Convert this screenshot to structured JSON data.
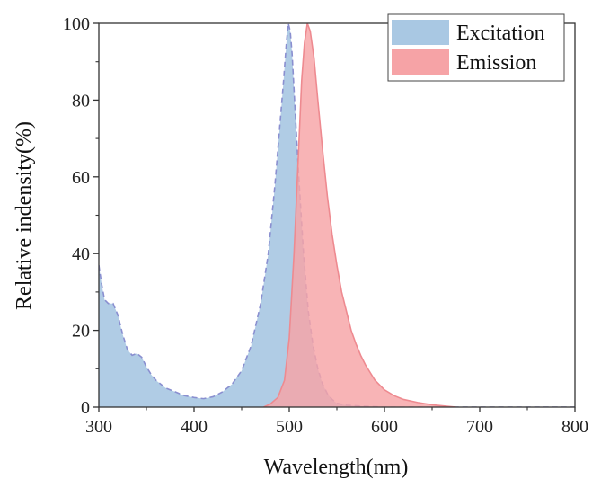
{
  "chart_data": {
    "type": "area",
    "title": "",
    "xlabel": "Wavelength(nm)",
    "ylabel": "Relative indensity(%)",
    "xlim": [
      300,
      800
    ],
    "ylim": [
      0,
      100
    ],
    "xticks": [
      300,
      400,
      500,
      600,
      700,
      800
    ],
    "yticks": [
      0,
      20,
      40,
      60,
      80,
      100
    ],
    "grid": false,
    "legend_position": "top-right",
    "series": [
      {
        "name": "Excitation",
        "color": "#a9c8e3",
        "edge_color": "#8a8fd0",
        "line_style": "dashed",
        "points": [
          [
            300,
            37
          ],
          [
            303,
            32
          ],
          [
            306,
            28
          ],
          [
            310,
            27
          ],
          [
            315,
            27
          ],
          [
            320,
            24
          ],
          [
            325,
            19
          ],
          [
            330,
            15
          ],
          [
            335,
            13.5
          ],
          [
            340,
            14
          ],
          [
            345,
            13
          ],
          [
            350,
            10.5
          ],
          [
            355,
            8.5
          ],
          [
            360,
            7
          ],
          [
            365,
            6
          ],
          [
            370,
            5
          ],
          [
            380,
            4
          ],
          [
            390,
            3
          ],
          [
            400,
            2.5
          ],
          [
            410,
            2.2
          ],
          [
            420,
            2.7
          ],
          [
            430,
            4
          ],
          [
            440,
            6
          ],
          [
            450,
            9.5
          ],
          [
            460,
            16
          ],
          [
            470,
            27
          ],
          [
            478,
            40
          ],
          [
            485,
            58
          ],
          [
            490,
            73
          ],
          [
            494,
            85
          ],
          [
            497,
            95
          ],
          [
            499,
            100
          ],
          [
            501,
            98
          ],
          [
            503,
            92
          ],
          [
            506,
            78
          ],
          [
            510,
            60
          ],
          [
            515,
            40
          ],
          [
            520,
            25
          ],
          [
            525,
            16
          ],
          [
            530,
            10
          ],
          [
            535,
            6
          ],
          [
            540,
            3.5
          ],
          [
            545,
            2
          ],
          [
            550,
            1
          ],
          [
            560,
            0.5
          ],
          [
            580,
            0.2
          ],
          [
            600,
            0
          ],
          [
            700,
            0
          ],
          [
            800,
            0
          ]
        ]
      },
      {
        "name": "Emission",
        "color": "#f6a3a6",
        "edge_color": "#ee8a90",
        "line_style": "solid",
        "points": [
          [
            473,
            0
          ],
          [
            480,
            0.8
          ],
          [
            488,
            2.5
          ],
          [
            495,
            7
          ],
          [
            500,
            18
          ],
          [
            505,
            40
          ],
          [
            510,
            68
          ],
          [
            513,
            85
          ],
          [
            516,
            95
          ],
          [
            519,
            100
          ],
          [
            522,
            98
          ],
          [
            526,
            91
          ],
          [
            530,
            80
          ],
          [
            535,
            67
          ],
          [
            540,
            55
          ],
          [
            545,
            45
          ],
          [
            550,
            37
          ],
          [
            555,
            30
          ],
          [
            560,
            25
          ],
          [
            565,
            20
          ],
          [
            570,
            16.5
          ],
          [
            575,
            13.5
          ],
          [
            580,
            11
          ],
          [
            590,
            7
          ],
          [
            600,
            4.5
          ],
          [
            610,
            3
          ],
          [
            620,
            2
          ],
          [
            635,
            1.2
          ],
          [
            650,
            0.6
          ],
          [
            675,
            0
          ]
        ]
      }
    ]
  }
}
